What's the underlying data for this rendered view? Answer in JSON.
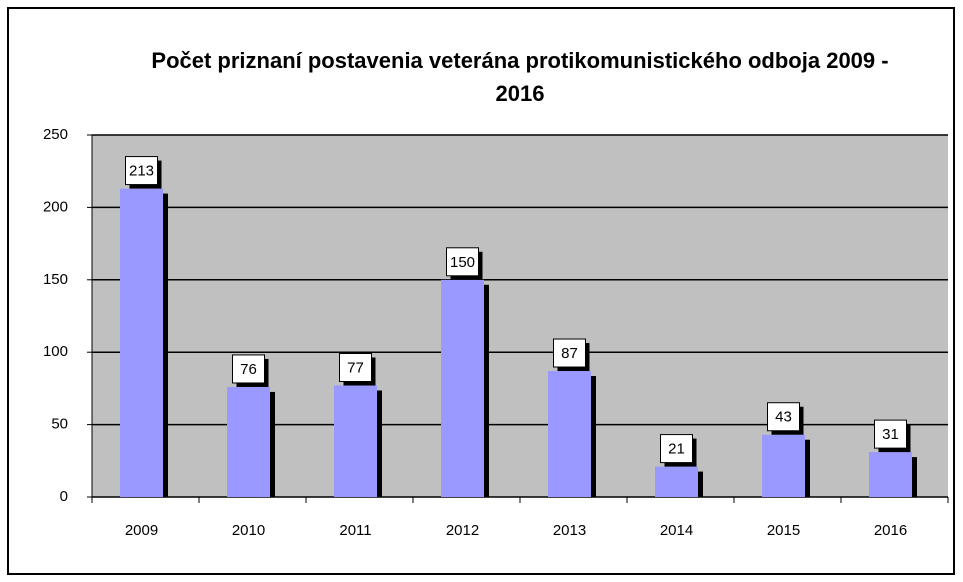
{
  "chart_data": {
    "type": "bar",
    "title": "Počet priznaní postavenia veterána protikomunistického odboja 2009 - 2016",
    "categories": [
      "2009",
      "2010",
      "2011",
      "2012",
      "2013",
      "2014",
      "2015",
      "2016"
    ],
    "values": [
      213,
      76,
      77,
      150,
      87,
      21,
      43,
      31
    ],
    "color": "#9999ff",
    "ylim": [
      0,
      250
    ],
    "yticks": [
      0,
      50,
      100,
      150,
      200,
      250
    ],
    "grid": true
  }
}
